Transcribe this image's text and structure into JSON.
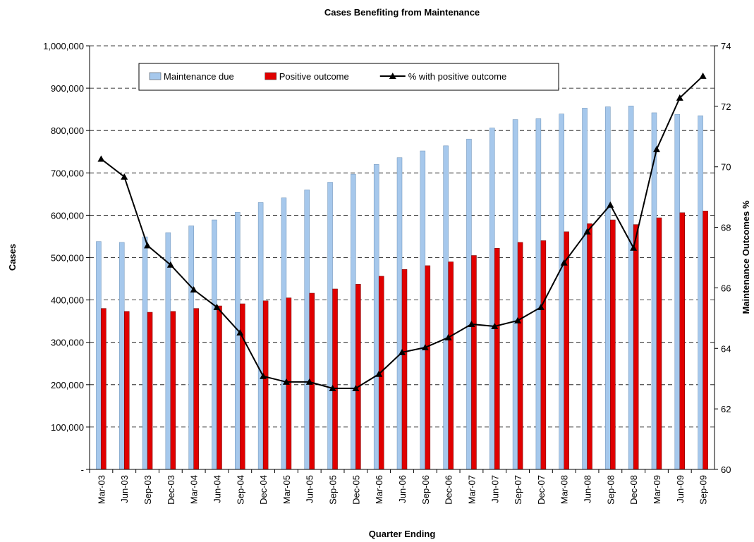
{
  "chart_data": {
    "type": "bar_line",
    "title": "Cases Benefiting from Maintenance",
    "x_label": "Quarter Ending",
    "y_label": "Cases",
    "y2_label": "Maintenance Outcomes %",
    "categories": [
      "Mar-03",
      "Jun-03",
      "Sep-03",
      "Dec-03",
      "Mar-04",
      "Jun-04",
      "Sep-04",
      "Dec-04",
      "Mar-05",
      "Jun-05",
      "Sep-05",
      "Dec-05",
      "Mar-06",
      "Jun-06",
      "Sep-06",
      "Dec-06",
      "Mar-07",
      "Jun-07",
      "Sep-07",
      "Dec-07",
      "Mar-08",
      "Jun-08",
      "Sep-08",
      "Dec-08",
      "Mar-09",
      "Jun-09",
      "Sep-09"
    ],
    "series": [
      {
        "name": "Maintenance due",
        "type": "bar",
        "color": "#a6c8ec",
        "values": [
          538000,
          536000,
          549000,
          559000,
          575000,
          589000,
          607000,
          630000,
          641000,
          660000,
          678000,
          697000,
          720000,
          736000,
          752000,
          764000,
          780000,
          806000,
          826000,
          828000,
          839000,
          853000,
          856000,
          858000,
          842000,
          838000,
          835000
        ]
      },
      {
        "name": "Positive outcome",
        "type": "bar",
        "color": "#e00000",
        "values": [
          380000,
          373000,
          371000,
          373000,
          380000,
          386000,
          391000,
          398000,
          405000,
          416000,
          426000,
          437000,
          456000,
          472000,
          481000,
          490000,
          505000,
          522000,
          536000,
          540000,
          561000,
          580000,
          589000,
          578000,
          594000,
          606000,
          610000
        ]
      },
      {
        "name": "% with positive outcome",
        "type": "line",
        "axis": "y2",
        "color": "#000000",
        "values": [
          70.26,
          69.67,
          67.4,
          66.76,
          65.94,
          65.36,
          64.52,
          63.08,
          62.89,
          62.89,
          62.68,
          62.68,
          63.15,
          63.87,
          64.03,
          64.36,
          64.8,
          64.73,
          64.92,
          65.36,
          66.83,
          67.86,
          68.74,
          67.32,
          70.58,
          72.28,
          73.0
        ]
      }
    ],
    "ylim": [
      0,
      1000000
    ],
    "yticks": [
      {
        "value": 0,
        "label": "-"
      },
      {
        "value": 100000,
        "label": "100,000"
      },
      {
        "value": 200000,
        "label": "200,000"
      },
      {
        "value": 300000,
        "label": "300,000"
      },
      {
        "value": 400000,
        "label": "400,000"
      },
      {
        "value": 500000,
        "label": "500,000"
      },
      {
        "value": 600000,
        "label": "600,000"
      },
      {
        "value": 700000,
        "label": "700,000"
      },
      {
        "value": 800000,
        "label": "800,000"
      },
      {
        "value": 900000,
        "label": "900,000"
      },
      {
        "value": 1000000,
        "label": "1,000,000"
      }
    ],
    "y2lim": [
      60,
      74
    ],
    "y2ticks": [
      60,
      62,
      64,
      66,
      68,
      70,
      72,
      74
    ],
    "grid": true
  }
}
